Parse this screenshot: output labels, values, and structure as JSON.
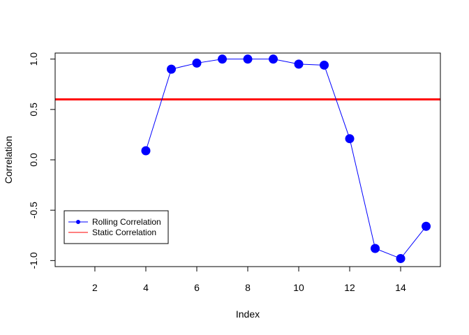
{
  "chart_data": {
    "type": "line",
    "xlabel": "Index",
    "ylabel": "Correlation",
    "xlim": [
      0.44,
      15.56
    ],
    "ylim": [
      -1.06,
      1.06
    ],
    "x_ticks": [
      2,
      4,
      6,
      8,
      10,
      12,
      14
    ],
    "y_ticks": [
      -1.0,
      -0.5,
      0.0,
      0.5,
      1.0
    ],
    "x_tick_labels": [
      "2",
      "4",
      "6",
      "8",
      "10",
      "12",
      "14"
    ],
    "y_tick_labels": [
      "-1.0",
      "-0.5",
      "0.0",
      "0.5",
      "1.0"
    ],
    "grid": false,
    "legend_position": "bottom-left",
    "series": [
      {
        "name": "Rolling Correlation",
        "color": "#0000ff",
        "marker": "filled-circle",
        "x": [
          4,
          5,
          6,
          7,
          8,
          9,
          10,
          11,
          12,
          13,
          14,
          15
        ],
        "values": [
          0.09,
          0.9,
          0.96,
          1.0,
          1.0,
          1.0,
          0.95,
          0.94,
          0.21,
          -0.88,
          -0.98,
          -0.66
        ]
      },
      {
        "name": "Static Correlation",
        "color": "#ff0000",
        "type": "hline",
        "value": 0.6
      }
    ]
  }
}
